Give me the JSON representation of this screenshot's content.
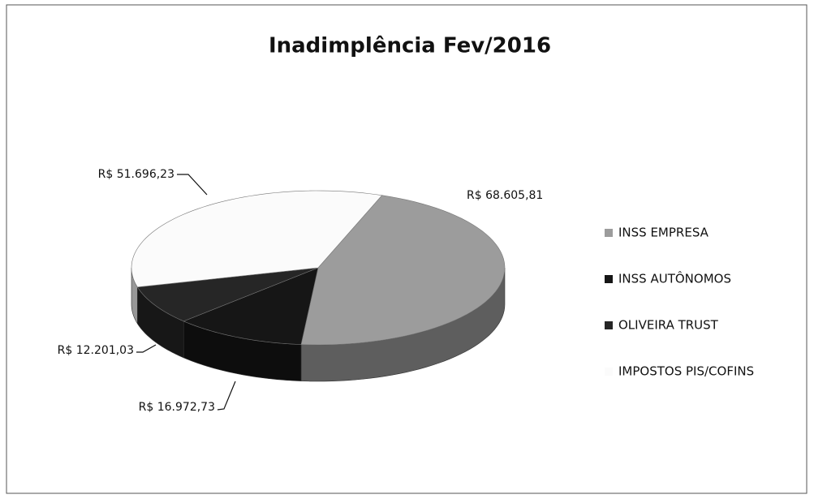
{
  "chart_data": {
    "type": "pie",
    "title": "Inadimplência  Fev/2016",
    "categories": [
      "INSS EMPRESA",
      "INSS AUTÔNOMOS",
      "OLIVEIRA TRUST",
      "IMPOSTOS PIS/COFINS"
    ],
    "values": [
      68605.81,
      16972.73,
      12201.03,
      51696.23
    ],
    "value_labels": [
      "R$ 68.605,81",
      "R$ 16.972,73",
      "R$ 12.201,03",
      "R$ 51.696,23"
    ],
    "colors": [
      "#9c9c9c",
      "#161616",
      "#262626",
      "#fbfbfb"
    ],
    "legend": "right"
  }
}
